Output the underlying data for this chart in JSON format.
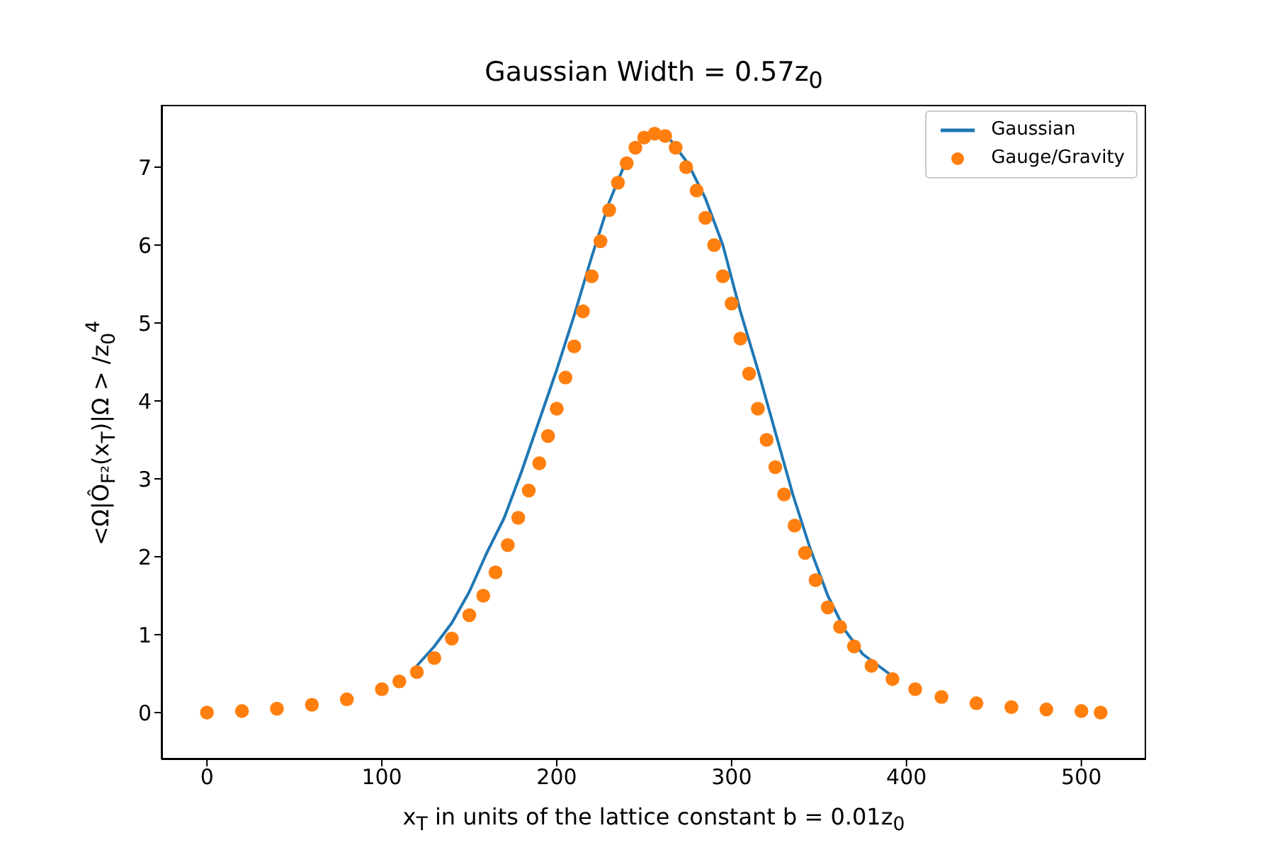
{
  "chart_data": {
    "type": "line",
    "title": "Gaussian Width = 0.57z$_{0}$",
    "xlabel": "x$_{T}$ in units of the lattice constant b = 0.01z$_{0}$",
    "ylabel": "<Ω|Ô$_{F²}$(x$_{T}$)|Ω > /z$_{0}$$^{4}$",
    "xlim": [
      -26,
      537
    ],
    "ylim": [
      -0.6,
      7.8
    ],
    "xticks": [
      0,
      100,
      200,
      300,
      400,
      500
    ],
    "yticks": [
      0,
      1,
      2,
      3,
      4,
      5,
      6,
      7
    ],
    "grid": false,
    "legend": "top right",
    "series": [
      {
        "name": "Gaussian",
        "type": "line",
        "marker": "none",
        "line_style": "solid",
        "color": "#1f77b4",
        "x": [
          120,
          130,
          140,
          150,
          160,
          170,
          180,
          190,
          200,
          210,
          220,
          230,
          240,
          250,
          256,
          265,
          275,
          285,
          295,
          305,
          315,
          325,
          335,
          345,
          355,
          365,
          375,
          390
        ],
        "values": [
          0.6,
          0.85,
          1.15,
          1.55,
          2.05,
          2.5,
          3.1,
          3.75,
          4.4,
          5.1,
          5.85,
          6.55,
          7.1,
          null,
          null,
          7.35,
          7.05,
          6.6,
          6.0,
          5.15,
          4.4,
          3.6,
          2.8,
          2.1,
          1.5,
          1.05,
          0.75,
          0.5
        ]
      },
      {
        "name": "Gauge/Gravity",
        "type": "scatter",
        "marker": "circle",
        "color": "#ff7f0e",
        "x": [
          0,
          20,
          40,
          60,
          80,
          100,
          110,
          120,
          130,
          140,
          150,
          158,
          165,
          172,
          178,
          184,
          190,
          195,
          200,
          205,
          210,
          215,
          220,
          225,
          230,
          235,
          240,
          245,
          250,
          256,
          262,
          268,
          274,
          280,
          285,
          290,
          295,
          300,
          305,
          310,
          315,
          320,
          325,
          330,
          336,
          342,
          348,
          355,
          362,
          370,
          380,
          392,
          405,
          420,
          440,
          460,
          480,
          500,
          511
        ],
        "values": [
          0.0,
          0.02,
          0.05,
          0.1,
          0.17,
          0.3,
          0.4,
          0.52,
          0.7,
          0.95,
          1.25,
          1.5,
          1.8,
          2.15,
          2.5,
          2.85,
          3.2,
          3.55,
          3.9,
          4.3,
          4.7,
          5.15,
          5.6,
          6.05,
          6.45,
          6.8,
          7.05,
          7.25,
          7.38,
          7.43,
          7.4,
          7.25,
          7.0,
          6.7,
          6.35,
          6.0,
          5.6,
          5.25,
          4.8,
          4.35,
          3.9,
          3.5,
          3.15,
          2.8,
          2.4,
          2.05,
          1.7,
          1.35,
          1.1,
          0.85,
          0.6,
          0.43,
          0.3,
          0.2,
          0.12,
          0.07,
          0.04,
          0.02,
          0.0
        ]
      }
    ]
  }
}
